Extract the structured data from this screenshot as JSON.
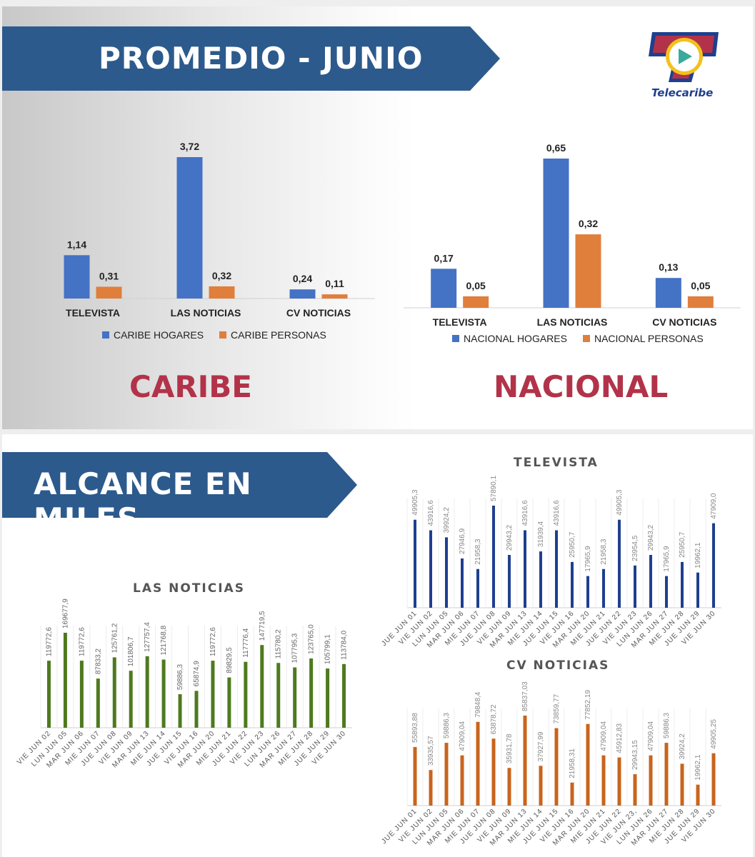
{
  "top": {
    "banner_title": "PROMEDIO - JUNIO",
    "logo_text": "Telecaribe",
    "caribe_label": "CARIBE",
    "nacional_label": "NACIONAL"
  },
  "bottom": {
    "banner_title": "ALCANCE EN MILES"
  },
  "colors": {
    "banner_blue": "#2c5a8c",
    "hogares_blue": "#4472c4",
    "personas_orange": "#e07e3c",
    "region_red": "#b23349",
    "las_noticias_green": "#4e7a1e",
    "televista_navy": "#1f3f8f",
    "cv_orange": "#c8641e"
  },
  "chart_data": [
    {
      "id": "caribe",
      "type": "bar",
      "categories": [
        "TELEVISTA",
        "LAS NOTICIAS",
        "CV NOTICIAS"
      ],
      "series": [
        {
          "name": "CARIBE HOGARES",
          "values": [
            1.14,
            3.72,
            0.24
          ],
          "labels": [
            "1,14",
            "3,72",
            "0,24"
          ]
        },
        {
          "name": "CARIBE PERSONAS",
          "values": [
            0.31,
            0.32,
            0.11
          ],
          "labels": [
            "0,31",
            "0,32",
            "0,11"
          ]
        }
      ],
      "legend_position": "bottom"
    },
    {
      "id": "nacional",
      "type": "bar",
      "categories": [
        "TELEVISTA",
        "LAS NOTICIAS",
        "CV NOTICIAS"
      ],
      "series": [
        {
          "name": "NACIONAL HOGARES",
          "values": [
            0.17,
            0.65,
            0.13
          ],
          "labels": [
            "0,17",
            "0,65",
            "0,13"
          ]
        },
        {
          "name": "NACIONAL PERSONAS",
          "values": [
            0.05,
            0.32,
            0.05
          ],
          "labels": [
            "0,05",
            "0,32",
            "0,05"
          ]
        }
      ],
      "legend_position": "bottom"
    },
    {
      "id": "las_noticias",
      "type": "bar",
      "title": "LAS NOTICIAS",
      "categories": [
        "VIE JUN 02",
        "LUN JUN 05",
        "MAR JUN 06",
        "MIE JUN 07",
        "JUE JUN 08",
        "VIE JUN 09",
        "MAR JUN 13",
        "MIE JUN 14",
        "JUE JUN 15",
        "VIE JUN 16",
        "MAR JUN 20",
        "MIE JUN 21",
        "JUE JUN 22",
        "VIE JUN 23",
        "LUN JUN 26",
        "MAR JUN 27",
        "MIE JUN 28",
        "JUE JUN 29",
        "VIE JUN 30"
      ],
      "values": [
        119772.6,
        169677.9,
        119772.6,
        87833.2,
        125761.2,
        101806.7,
        127757.4,
        121768.8,
        59886.3,
        65874.9,
        119772.6,
        89829.5,
        117776.4,
        147719.5,
        115780.2,
        107795.3,
        123765.0,
        105799.1,
        113784.0
      ],
      "labels": [
        "119772,6",
        "169677,9",
        "119772,6",
        "87833,2",
        "125761,2",
        "101806,7",
        "127757,4",
        "121768,8",
        "59886,3",
        "65874,9",
        "119772,6",
        "89829,5",
        "117776,4",
        "147719,5",
        "115780,2",
        "107795,3",
        "123765,0",
        "105799,1",
        "113784,0"
      ]
    },
    {
      "id": "televista",
      "type": "bar",
      "title": "TELEVISTA",
      "categories": [
        "JUE JUN 01",
        "VIE JUN 02",
        "LUN JUN 05",
        "MAR JUN 06",
        "MIE JUN 07",
        "JUE JUN 08",
        "VIE JUN 09",
        "MAR JUN 13",
        "MIE JUN 14",
        "JUE JUN 15",
        "VIE JUN 16",
        "MAR JUN 20",
        "MIE JUN 21",
        "JUE JUN 22",
        "VIE JUN 23",
        "LUN JUN 26",
        "MAR JUN 27",
        "MIE JUN 28",
        "JUE JUN 29",
        "VIE JUN 30"
      ],
      "values": [
        49905.3,
        43916.6,
        39924.2,
        27946.9,
        21958.3,
        57890.1,
        29943.2,
        43916.6,
        31939.4,
        43916.6,
        25950.7,
        17965.9,
        21958.3,
        49905.3,
        23954.5,
        29943.2,
        17965.9,
        25950.7,
        19962.1,
        47909.0
      ],
      "labels": [
        "49905,3",
        "43916,6",
        "39924,2",
        "27946,9",
        "21958,3",
        "57890,1",
        "29943,2",
        "43916,6",
        "31939,4",
        "43916,6",
        "25950,7",
        "17965,9",
        "21958,3",
        "49905,3",
        "23954,5",
        "29943,2",
        "17965,9",
        "25950,7",
        "19962,1",
        "47909,0"
      ]
    },
    {
      "id": "cv_noticias",
      "type": "bar",
      "title": "CV NOTICIAS",
      "categories": [
        "JUE JUN 01",
        "VIE JUN 02",
        "LUN JUN 05",
        "MAR JUN 06",
        "MIE JUN 07",
        "JUE JUN 08",
        "VIE JUN 09",
        "MAR JUN 13",
        "MIE JUN 14",
        "JUE JUN 15",
        "VIE JUN 16",
        "MAR JUN 20",
        "MIE JUN 21",
        "JUE JUN 22",
        "VIE JUN 23,",
        "LUN JUN 26",
        "MAR JUN 27",
        "MIE JUN 28",
        "JUE JUN 29",
        "VIE JUN 30"
      ],
      "values": [
        55893.88,
        33935.57,
        59886.3,
        47909.04,
        79848.4,
        63878.72,
        35931.78,
        85837.03,
        37927.99,
        73859.77,
        21958.31,
        77852.19,
        47909.04,
        45912.83,
        29943.15,
        47909.04,
        59886.3,
        39924.2,
        19962.1,
        49905.25
      ],
      "labels": [
        "55893,88",
        "33935,57",
        "59886,3",
        "47909,04",
        "79848,4",
        "63878,72",
        "35931,78",
        "85837,03",
        "37927,99",
        "73859,77",
        "21958,31",
        "77852,19",
        "47909,04",
        "45912,83",
        "29943,15",
        "47909,04",
        "59886,3",
        "39924,2",
        "19962,1",
        "49905,25"
      ]
    }
  ]
}
